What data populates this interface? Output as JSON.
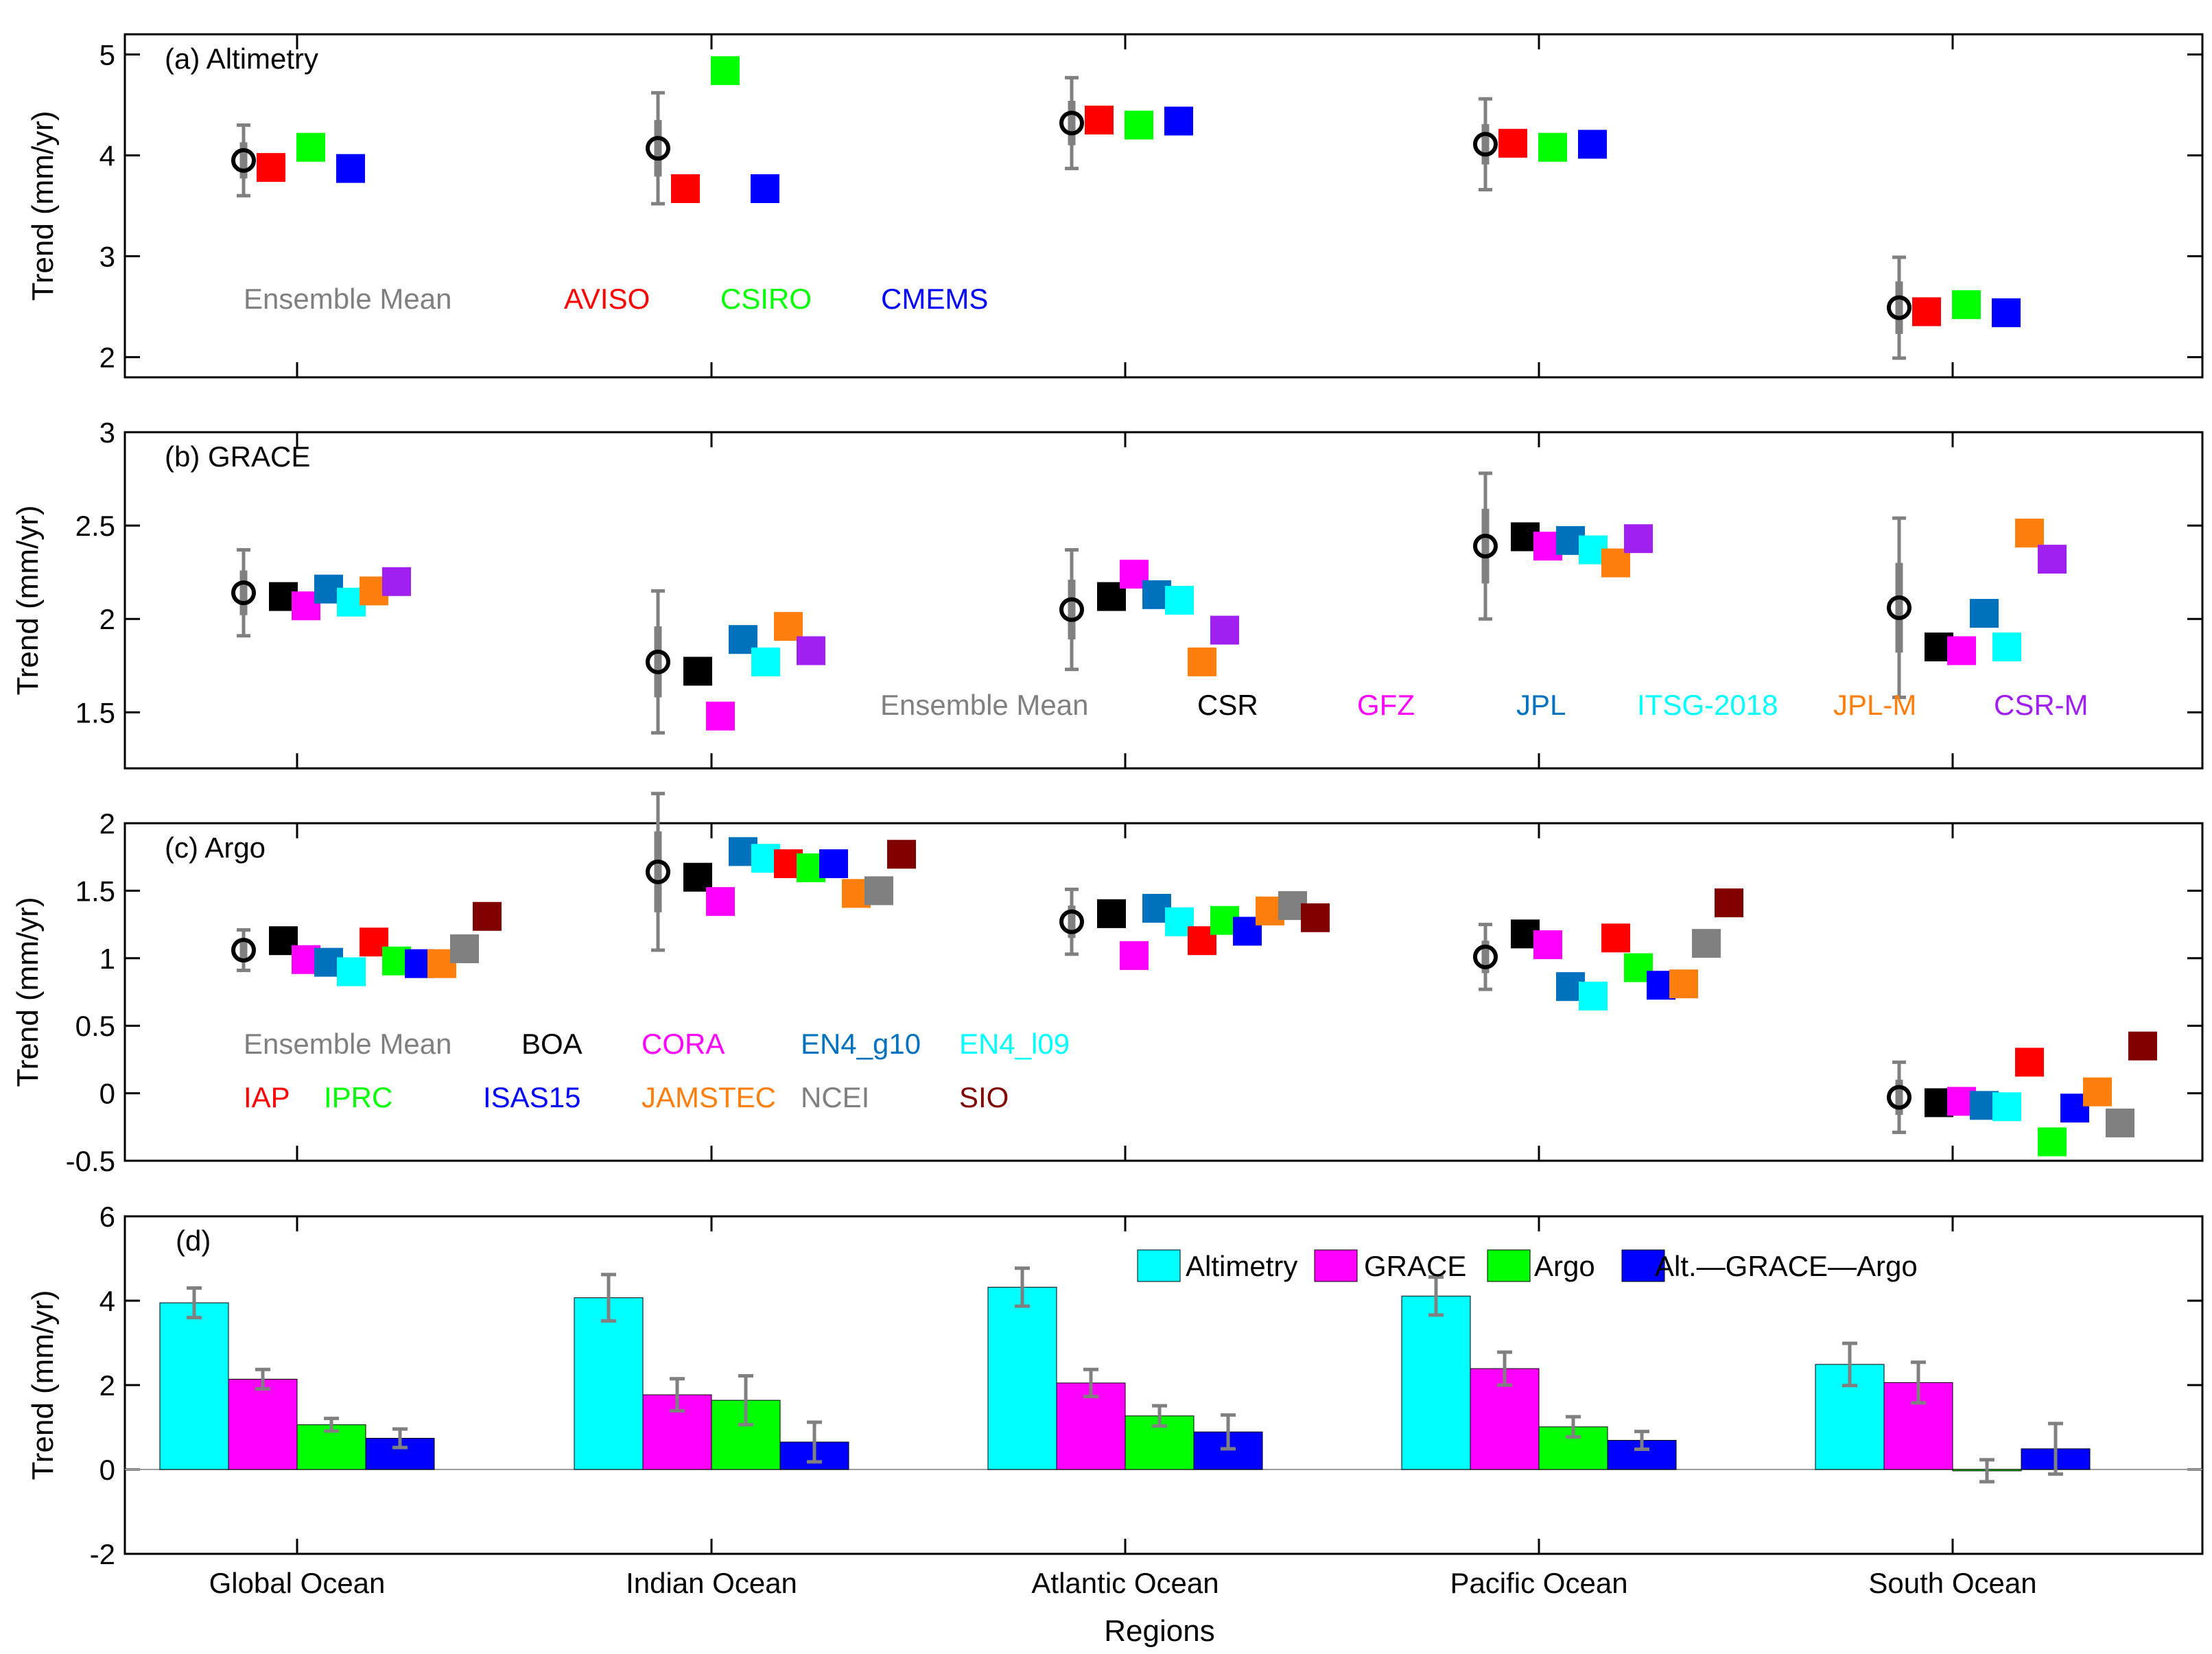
{
  "colors": {
    "ensemble": "#808080",
    "errorbar": "#808080"
  },
  "x_axis": {
    "regions": [
      "Global Ocean",
      "Indian Ocean",
      "Atlantic Ocean",
      "Pacific Ocean",
      "South Ocean"
    ],
    "label": "Regions"
  },
  "chart_data": [
    {
      "type": "scatter",
      "title": "(a) Altimetry",
      "ylabel": "Trend (mm/yr)",
      "ylim": [
        1.8,
        5.2
      ],
      "yticks": [
        2,
        3,
        4,
        5
      ],
      "categories": [
        "Global Ocean",
        "Indian Ocean",
        "Atlantic Ocean",
        "Pacific Ocean",
        "South Ocean"
      ],
      "ensemble": {
        "name": "Ensemble Mean",
        "values": [
          3.95,
          4.07,
          4.32,
          4.11,
          2.49
        ],
        "err_inner": [
          0.18,
          0.28,
          0.22,
          0.2,
          0.26
        ],
        "err_outer": [
          0.35,
          0.55,
          0.45,
          0.45,
          0.5
        ]
      },
      "series": [
        {
          "name": "AVISO",
          "color": "#ff0000",
          "values": [
            3.88,
            3.67,
            4.35,
            4.12,
            2.45
          ]
        },
        {
          "name": "CSIRO",
          "color": "#00ff00",
          "values": [
            4.08,
            4.84,
            4.3,
            4.08,
            2.52
          ]
        },
        {
          "name": "CMEMS",
          "color": "#0000ff",
          "values": [
            3.87,
            3.67,
            4.34,
            4.11,
            2.44
          ]
        }
      ],
      "legend_rows": [
        [
          "Ensemble Mean",
          "AVISO",
          "CSIRO",
          "CMEMS"
        ]
      ]
    },
    {
      "type": "scatter",
      "title": "(b) GRACE",
      "ylabel": "Trend (mm/yr)",
      "ylim": [
        1.2,
        3.0
      ],
      "yticks": [
        1.5,
        2,
        2.5,
        3
      ],
      "categories": [
        "Global Ocean",
        "Indian Ocean",
        "Atlantic Ocean",
        "Pacific Ocean",
        "South Ocean"
      ],
      "ensemble": {
        "name": "Ensemble Mean",
        "values": [
          2.14,
          1.77,
          2.05,
          2.39,
          2.06
        ],
        "err_inner": [
          0.12,
          0.19,
          0.16,
          0.2,
          0.24
        ],
        "err_outer": [
          0.23,
          0.38,
          0.32,
          0.39,
          0.48
        ]
      },
      "series": [
        {
          "name": "CSR",
          "color": "#000000",
          "values": [
            2.12,
            1.72,
            2.12,
            2.44,
            1.85
          ]
        },
        {
          "name": "GFZ",
          "color": "#ff00ff",
          "values": [
            2.07,
            1.48,
            2.24,
            2.39,
            1.83
          ]
        },
        {
          "name": "JPL",
          "color": "#0072bd",
          "values": [
            2.16,
            1.89,
            2.13,
            2.42,
            2.03
          ]
        },
        {
          "name": "ITSG-2018",
          "color": "#00ffff",
          "values": [
            2.09,
            1.77,
            2.1,
            2.37,
            1.85
          ]
        },
        {
          "name": "JPL-M",
          "color": "#ff7f0e",
          "values": [
            2.15,
            1.96,
            1.77,
            2.3,
            2.46
          ]
        },
        {
          "name": "CSR-M",
          "color": "#a020f0",
          "values": [
            2.2,
            1.83,
            1.94,
            2.43,
            2.32
          ]
        }
      ],
      "legend_rows": [
        [
          "Ensemble Mean",
          "CSR",
          "GFZ",
          "JPL",
          "ITSG-2018",
          "JPL-M",
          "CSR-M"
        ]
      ]
    },
    {
      "type": "scatter",
      "title": "(c) Argo",
      "ylabel": "Trend (mm/yr)",
      "ylim": [
        -0.5,
        2.0
      ],
      "yticks": [
        -0.5,
        0,
        0.5,
        1,
        1.5,
        2
      ],
      "categories": [
        "Global Ocean",
        "Indian Ocean",
        "Atlantic Ocean",
        "Pacific Ocean",
        "South Ocean"
      ],
      "ensemble": {
        "name": "Ensemble Mean",
        "values": [
          1.06,
          1.64,
          1.27,
          1.01,
          -0.03
        ],
        "err_inner": [
          0.08,
          0.3,
          0.12,
          0.12,
          0.13
        ],
        "err_outer": [
          0.15,
          0.58,
          0.24,
          0.24,
          0.26
        ]
      },
      "series": [
        {
          "name": "BOA",
          "color": "#000000",
          "values": [
            1.13,
            1.6,
            1.33,
            1.18,
            -0.07
          ]
        },
        {
          "name": "CORA",
          "color": "#ff00ff",
          "values": [
            0.99,
            1.42,
            1.02,
            1.1,
            -0.06
          ]
        },
        {
          "name": "EN4_g10",
          "color": "#0072bd",
          "values": [
            0.97,
            1.79,
            1.37,
            0.79,
            -0.09
          ]
        },
        {
          "name": "EN4_l09",
          "color": "#00ffff",
          "values": [
            0.9,
            1.74,
            1.27,
            0.72,
            -0.1
          ]
        },
        {
          "name": "IAP",
          "color": "#ff0000",
          "values": [
            1.12,
            1.7,
            1.13,
            1.15,
            0.23
          ]
        },
        {
          "name": "IPRC",
          "color": "#00ff00",
          "values": [
            0.98,
            1.67,
            1.28,
            0.93,
            -0.36
          ]
        },
        {
          "name": "ISAS15",
          "color": "#0000ff",
          "values": [
            0.96,
            1.7,
            1.2,
            0.8,
            -0.11
          ]
        },
        {
          "name": "JAMSTEC",
          "color": "#ff7f0e",
          "values": [
            0.96,
            1.48,
            1.35,
            0.81,
            0.01
          ]
        },
        {
          "name": "NCEI",
          "color": "#808080",
          "values": [
            1.07,
            1.5,
            1.39,
            1.11,
            -0.22
          ]
        },
        {
          "name": "SIO",
          "color": "#800000",
          "values": [
            1.31,
            1.77,
            1.3,
            1.41,
            0.35
          ]
        }
      ],
      "legend_rows": [
        [
          "Ensemble Mean",
          "BOA",
          "CORA",
          "EN4_g10",
          "EN4_l09"
        ],
        [
          "IAP",
          "IPRC",
          "ISAS15",
          "JAMSTEC",
          "NCEI",
          "SIO"
        ]
      ]
    },
    {
      "type": "bar",
      "title": "(d)",
      "ylabel": "Trend (mm/yr)",
      "ylim": [
        -2,
        6
      ],
      "yticks": [
        -2,
        0,
        2,
        4,
        6
      ],
      "categories": [
        "Global Ocean",
        "Indian Ocean",
        "Atlantic Ocean",
        "Pacific Ocean",
        "South Ocean"
      ],
      "series": [
        {
          "name": "Altimetry",
          "color": "#00ffff",
          "values": [
            3.95,
            4.07,
            4.32,
            4.11,
            2.49
          ],
          "errors": [
            0.35,
            0.55,
            0.45,
            0.45,
            0.5
          ]
        },
        {
          "name": "GRACE",
          "color": "#ff00ff",
          "values": [
            2.14,
            1.77,
            2.05,
            2.39,
            2.06
          ],
          "errors": [
            0.23,
            0.38,
            0.32,
            0.39,
            0.48
          ]
        },
        {
          "name": "Argo",
          "color": "#00ff00",
          "values": [
            1.06,
            1.64,
            1.27,
            1.01,
            -0.03
          ],
          "errors": [
            0.15,
            0.58,
            0.24,
            0.24,
            0.26
          ]
        },
        {
          "name": "Alt.—GRACE—Argo",
          "color": "#0000ff",
          "values": [
            0.74,
            0.65,
            0.89,
            0.69,
            0.49
          ],
          "errors": [
            0.22,
            0.47,
            0.4,
            0.21,
            0.6
          ]
        }
      ]
    }
  ]
}
